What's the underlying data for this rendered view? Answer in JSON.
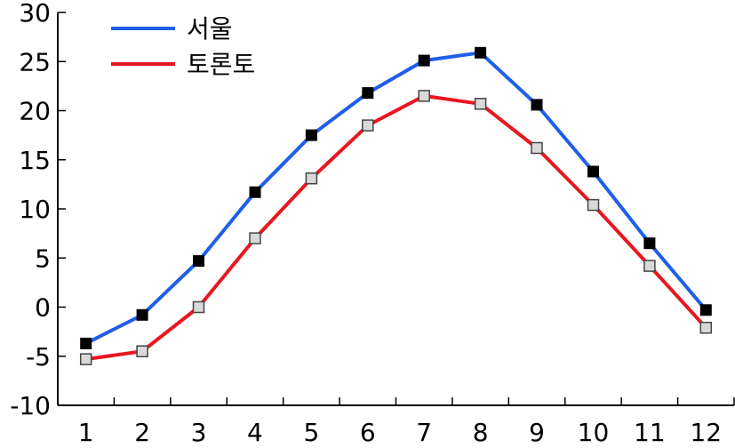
{
  "chart_data": {
    "type": "line",
    "title": "",
    "xlabel": "",
    "ylabel": "",
    "x": [
      1,
      2,
      3,
      4,
      5,
      6,
      7,
      8,
      9,
      10,
      11,
      12
    ],
    "xlim": [
      0.5,
      12.5
    ],
    "ylim": [
      -10,
      30
    ],
    "xticks": [
      1,
      2,
      3,
      4,
      5,
      6,
      7,
      8,
      9,
      10,
      11,
      12
    ],
    "yticks": [
      -10,
      -5,
      0,
      5,
      10,
      15,
      20,
      25,
      30
    ],
    "grid": false,
    "legend_position": "top-left",
    "series": [
      {
        "name": "서울",
        "color": "#1f5fe8",
        "marker": "filled-square",
        "marker_fill": "#000000",
        "values": [
          -3.7,
          -0.8,
          4.7,
          11.7,
          17.5,
          21.8,
          25.1,
          25.9,
          20.6,
          13.8,
          6.5,
          -0.3
        ]
      },
      {
        "name": "토론토",
        "color": "#e8171f",
        "marker": "hollow-square",
        "marker_fill": "#d9d9d9",
        "values": [
          -5.3,
          -4.5,
          0.0,
          7.0,
          13.1,
          18.5,
          21.5,
          20.7,
          16.2,
          10.4,
          4.2,
          -2.1
        ]
      }
    ]
  }
}
